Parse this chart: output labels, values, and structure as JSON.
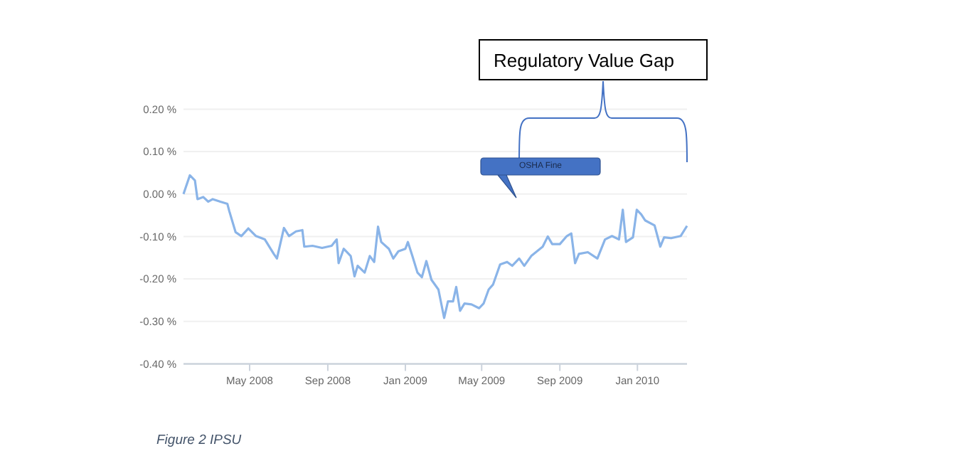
{
  "chart_data": {
    "type": "line",
    "x": [
      "2008-01-18",
      "2008-01-28",
      "2008-02-05",
      "2008-02-09",
      "2008-02-18",
      "2008-02-26",
      "2008-03-04",
      "2008-03-16",
      "2008-03-27",
      "2008-03-30",
      "2008-04-09",
      "2008-04-18",
      "2008-04-29",
      "2008-05-11",
      "2008-05-25",
      "2008-06-08",
      "2008-06-13",
      "2008-06-24",
      "2008-07-02",
      "2008-07-13",
      "2008-07-23",
      "2008-07-26",
      "2008-08-08",
      "2008-08-23",
      "2008-09-07",
      "2008-09-15",
      "2008-09-18",
      "2008-09-26",
      "2008-10-07",
      "2008-10-13",
      "2008-10-18",
      "2008-10-29",
      "2008-11-06",
      "2008-11-13",
      "2008-11-19",
      "2008-11-24",
      "2008-12-06",
      "2008-12-13",
      "2008-12-21",
      "2009-01-01",
      "2009-01-05",
      "2009-01-12",
      "2009-01-20",
      "2009-01-27",
      "2009-02-03",
      "2009-02-11",
      "2009-02-22",
      "2009-03-03",
      "2009-03-09",
      "2009-03-17",
      "2009-03-22",
      "2009-03-28",
      "2009-04-04",
      "2009-04-15",
      "2009-04-27",
      "2009-05-04",
      "2009-05-12",
      "2009-05-19",
      "2009-05-30",
      "2009-06-10",
      "2009-06-18",
      "2009-06-29",
      "2009-07-07",
      "2009-07-18",
      "2009-08-05",
      "2009-08-13",
      "2009-08-20",
      "2009-09-01",
      "2009-09-12",
      "2009-09-19",
      "2009-09-25",
      "2009-10-01",
      "2009-10-15",
      "2009-10-30",
      "2009-11-11",
      "2009-11-22",
      "2009-12-03",
      "2009-12-09",
      "2009-12-14",
      "2009-12-25",
      "2009-12-31",
      "2010-01-07",
      "2010-01-13",
      "2010-01-28",
      "2010-02-06",
      "2010-02-12",
      "2010-02-23",
      "2010-03-10",
      "2010-03-20"
    ],
    "series": [
      {
        "color": "#8ab4e8",
        "values": [
          0.0,
          0.044,
          0.032,
          -0.012,
          -0.007,
          -0.018,
          -0.012,
          -0.018,
          -0.023,
          -0.04,
          -0.09,
          -0.099,
          -0.081,
          -0.099,
          -0.107,
          -0.141,
          -0.152,
          -0.08,
          -0.099,
          -0.088,
          -0.085,
          -0.124,
          -0.122,
          -0.127,
          -0.122,
          -0.107,
          -0.163,
          -0.129,
          -0.146,
          -0.194,
          -0.169,
          -0.185,
          -0.146,
          -0.16,
          -0.077,
          -0.113,
          -0.129,
          -0.152,
          -0.135,
          -0.129,
          -0.113,
          -0.146,
          -0.185,
          -0.196,
          -0.158,
          -0.202,
          -0.225,
          -0.292,
          -0.253,
          -0.253,
          -0.219,
          -0.275,
          -0.258,
          -0.26,
          -0.269,
          -0.258,
          -0.225,
          -0.213,
          -0.166,
          -0.16,
          -0.169,
          -0.152,
          -0.169,
          -0.146,
          -0.124,
          -0.1,
          -0.118,
          -0.118,
          -0.099,
          -0.093,
          -0.163,
          -0.141,
          -0.137,
          -0.152,
          -0.107,
          -0.099,
          -0.107,
          -0.037,
          -0.113,
          -0.102,
          -0.037,
          -0.048,
          -0.062,
          -0.074,
          -0.124,
          -0.102,
          -0.104,
          -0.099,
          -0.075
        ]
      }
    ],
    "xlim": [
      "2008-01-18",
      "2010-03-20"
    ],
    "xticks": [
      {
        "value": "2008-05-01",
        "label": "May 2008"
      },
      {
        "value": "2008-09-01",
        "label": "Sep 2008"
      },
      {
        "value": "2009-01-01",
        "label": "Jan 2009"
      },
      {
        "value": "2009-05-01",
        "label": "May 2009"
      },
      {
        "value": "2009-09-01",
        "label": "Sep 2009"
      },
      {
        "value": "2010-01-01",
        "label": "Jan 2010"
      }
    ],
    "ylim": [
      -0.4,
      0.2
    ],
    "yticks": [
      {
        "value": -0.4,
        "label": "-0.40 %"
      },
      {
        "value": -0.3,
        "label": "-0.30 %"
      },
      {
        "value": -0.2,
        "label": "-0.20 %"
      },
      {
        "value": -0.1,
        "label": "-0.10 %"
      },
      {
        "value": 0,
        "label": "0.00 %"
      },
      {
        "value": 0.1,
        "label": "0.10 %"
      },
      {
        "value": 0.2,
        "label": "0.20 %"
      }
    ],
    "grid": "y",
    "marker": "none",
    "line_style": "solid",
    "annotations": [
      "Regulatory Value Gap",
      "OSHA Fine",
      "Figure 2 IPSU"
    ]
  }
}
